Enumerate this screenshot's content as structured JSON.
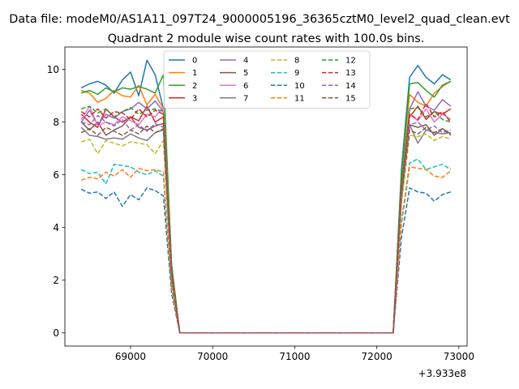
{
  "suptitle": "Data file: modeM0/AS1A11_097T24_9000005196_36365cztM0_level2_quad_clean.evt",
  "chart_data": {
    "type": "line",
    "title": "Quadrant 2 module wise count rates with 100.0s bins.",
    "xlabel": "",
    "ylabel": "",
    "x_offset_label": "+3.933e8",
    "xlim": [
      68200,
      73100
    ],
    "ylim": [
      -0.5,
      10.85
    ],
    "xticks": [
      69000,
      70000,
      71000,
      72000,
      73000
    ],
    "xtick_labels": [
      "69000",
      "70000",
      "71000",
      "72000",
      "73000"
    ],
    "yticks": [
      0,
      2,
      4,
      6,
      8,
      10
    ],
    "ytick_labels": [
      "0",
      "2",
      "4",
      "6",
      "8",
      "10"
    ],
    "grid": false,
    "legend_position": "top-center",
    "legend_columns": 4,
    "x": [
      68400,
      68500,
      68600,
      68700,
      68800,
      68900,
      69000,
      69100,
      69200,
      69300,
      69400,
      69500,
      69600,
      69700,
      69800,
      69900,
      70000,
      70100,
      70200,
      70300,
      70400,
      70500,
      70600,
      70700,
      70800,
      70900,
      71000,
      71100,
      71200,
      71300,
      71400,
      71500,
      71600,
      71700,
      71800,
      71900,
      72000,
      72100,
      72200,
      72300,
      72400,
      72500,
      72600,
      72700,
      72800,
      72900
    ],
    "series": [
      {
        "name": "0",
        "color": "#1f77b4",
        "dash": "solid",
        "values": [
          9.3,
          9.45,
          9.55,
          9.4,
          9.1,
          9.6,
          9.9,
          9.0,
          10.35,
          9.8,
          8.5,
          2.5,
          0,
          0,
          0,
          0,
          0,
          0,
          0,
          0,
          0,
          0,
          0,
          0,
          0,
          0,
          0,
          0,
          0,
          0,
          0,
          0,
          0,
          0,
          0,
          0,
          0,
          0,
          0,
          6.2,
          9.7,
          10.15,
          9.7,
          9.45,
          9.8,
          9.6
        ]
      },
      {
        "name": "1",
        "color": "#ff7f0e",
        "dash": "solid",
        "values": [
          9.2,
          9.1,
          8.75,
          8.9,
          9.2,
          9.0,
          8.95,
          9.4,
          8.65,
          9.05,
          8.5,
          2.5,
          0,
          0,
          0,
          0,
          0,
          0,
          0,
          0,
          0,
          0,
          0,
          0,
          0,
          0,
          0,
          0,
          0,
          0,
          0,
          0,
          0,
          0,
          0,
          0,
          0,
          0,
          0,
          6.0,
          9.05,
          8.75,
          8.6,
          9.1,
          9.35,
          9.55
        ]
      },
      {
        "name": "2",
        "color": "#2ca02c",
        "dash": "solid",
        "values": [
          9.1,
          9.2,
          9.05,
          9.3,
          9.15,
          9.3,
          9.25,
          9.35,
          9.25,
          9.1,
          9.8,
          2.6,
          0,
          0,
          0,
          0,
          0,
          0,
          0,
          0,
          0,
          0,
          0,
          0,
          0,
          0,
          0,
          0,
          0,
          0,
          0,
          0,
          0,
          0,
          0,
          0,
          0,
          0,
          0,
          6.0,
          9.45,
          9.5,
          9.2,
          8.95,
          9.4,
          9.55
        ]
      },
      {
        "name": "3",
        "color": "#d62728",
        "dash": "solid",
        "values": [
          8.3,
          8.0,
          7.8,
          8.5,
          8.2,
          8.0,
          8.2,
          8.05,
          8.6,
          8.0,
          8.2,
          2.3,
          0,
          0,
          0,
          0,
          0,
          0,
          0,
          0,
          0,
          0,
          0,
          0,
          0,
          0,
          0,
          0,
          0,
          0,
          0,
          0,
          0,
          0,
          0,
          0,
          0,
          0,
          0,
          5.4,
          8.2,
          8.6,
          8.1,
          8.4,
          8.3,
          8.5
        ]
      },
      {
        "name": "4",
        "color": "#9467bd",
        "dash": "solid",
        "values": [
          8.0,
          8.45,
          7.9,
          8.3,
          8.15,
          8.4,
          8.5,
          8.75,
          8.5,
          8.8,
          8.4,
          2.3,
          0,
          0,
          0,
          0,
          0,
          0,
          0,
          0,
          0,
          0,
          0,
          0,
          0,
          0,
          0,
          0,
          0,
          0,
          0,
          0,
          0,
          0,
          0,
          0,
          0,
          0,
          0,
          5.5,
          8.5,
          9.15,
          8.6,
          8.45,
          8.85,
          8.6
        ]
      },
      {
        "name": "5",
        "color": "#8c564b",
        "dash": "solid",
        "values": [
          8.0,
          7.7,
          8.0,
          7.5,
          7.7,
          7.85,
          8.2,
          7.8,
          7.7,
          7.85,
          7.95,
          2.2,
          0,
          0,
          0,
          0,
          0,
          0,
          0,
          0,
          0,
          0,
          0,
          0,
          0,
          0,
          0,
          0,
          0,
          0,
          0,
          0,
          0,
          0,
          0,
          0,
          0,
          0,
          0,
          5.3,
          7.9,
          7.8,
          7.9,
          7.5,
          7.75,
          7.55
        ]
      },
      {
        "name": "6",
        "color": "#e377c2",
        "dash": "solid",
        "values": [
          8.1,
          8.6,
          7.85,
          8.0,
          7.9,
          8.2,
          8.05,
          7.9,
          8.3,
          8.2,
          8.6,
          2.3,
          0,
          0,
          0,
          0,
          0,
          0,
          0,
          0,
          0,
          0,
          0,
          0,
          0,
          0,
          0,
          0,
          0,
          0,
          0,
          0,
          0,
          0,
          0,
          0,
          0,
          0,
          0,
          5.4,
          8.3,
          8.05,
          8.5,
          8.0,
          8.3,
          8.1
        ]
      },
      {
        "name": "7",
        "color": "#7f7f7f",
        "dash": "solid",
        "values": [
          7.8,
          7.5,
          7.45,
          7.35,
          7.4,
          7.35,
          7.55,
          7.4,
          7.3,
          7.6,
          7.7,
          2.1,
          0,
          0,
          0,
          0,
          0,
          0,
          0,
          0,
          0,
          0,
          0,
          0,
          0,
          0,
          0,
          0,
          0,
          0,
          0,
          0,
          0,
          0,
          0,
          0,
          0,
          0,
          0,
          5.0,
          7.9,
          7.2,
          7.7,
          7.6,
          7.55,
          7.6
        ]
      },
      {
        "name": "8",
        "color": "#bcbd22",
        "dash": "dashed",
        "values": [
          7.25,
          7.35,
          6.8,
          7.3,
          7.2,
          7.1,
          7.25,
          7.2,
          7.15,
          6.8,
          7.3,
          2.0,
          0,
          0,
          0,
          0,
          0,
          0,
          0,
          0,
          0,
          0,
          0,
          0,
          0,
          0,
          0,
          0,
          0,
          0,
          0,
          0,
          0,
          0,
          0,
          0,
          0,
          0,
          0,
          4.9,
          7.5,
          7.45,
          7.55,
          7.3,
          7.45,
          7.35
        ]
      },
      {
        "name": "9",
        "color": "#17becf",
        "dash": "dashed",
        "values": [
          6.2,
          6.05,
          6.1,
          5.65,
          6.4,
          6.35,
          6.3,
          6.1,
          6.0,
          6.15,
          5.95,
          1.7,
          0,
          0,
          0,
          0,
          0,
          0,
          0,
          0,
          0,
          0,
          0,
          0,
          0,
          0,
          0,
          0,
          0,
          0,
          0,
          0,
          0,
          0,
          0,
          0,
          0,
          0,
          0,
          4.2,
          6.45,
          6.6,
          6.2,
          6.3,
          6.4,
          6.2
        ]
      },
      {
        "name": "10",
        "color": "#1f77b4",
        "dash": "dashed",
        "values": [
          5.45,
          5.3,
          5.35,
          5.1,
          5.35,
          4.8,
          5.25,
          5.05,
          5.5,
          5.4,
          5.2,
          1.5,
          0,
          0,
          0,
          0,
          0,
          0,
          0,
          0,
          0,
          0,
          0,
          0,
          0,
          0,
          0,
          0,
          0,
          0,
          0,
          0,
          0,
          0,
          0,
          0,
          0,
          0,
          0,
          3.6,
          5.5,
          5.35,
          5.3,
          5.0,
          5.25,
          5.35
        ]
      },
      {
        "name": "11",
        "color": "#ff7f0e",
        "dash": "dashed",
        "values": [
          5.8,
          5.9,
          5.85,
          6.1,
          5.95,
          6.2,
          5.9,
          6.25,
          6.15,
          6.2,
          6.1,
          1.7,
          0,
          0,
          0,
          0,
          0,
          0,
          0,
          0,
          0,
          0,
          0,
          0,
          0,
          0,
          0,
          0,
          0,
          0,
          0,
          0,
          0,
          0,
          0,
          0,
          0,
          0,
          0,
          4.1,
          6.3,
          6.25,
          6.2,
          5.95,
          5.9,
          6.15
        ]
      },
      {
        "name": "12",
        "color": "#2ca02c",
        "dash": "dashed",
        "values": [
          8.5,
          8.6,
          8.35,
          8.5,
          8.2,
          8.4,
          8.55,
          8.3,
          8.45,
          8.5,
          8.4,
          2.4,
          0,
          0,
          0,
          0,
          0,
          0,
          0,
          0,
          0,
          0,
          0,
          0,
          0,
          0,
          0,
          0,
          0,
          0,
          0,
          0,
          0,
          0,
          0,
          0,
          0,
          0,
          0,
          5.6,
          8.5,
          8.55,
          8.2,
          8.4,
          8.1,
          8.0
        ]
      },
      {
        "name": "13",
        "color": "#d62728",
        "dash": "dashed",
        "values": [
          8.4,
          8.2,
          8.5,
          8.15,
          8.4,
          8.35,
          8.1,
          8.5,
          8.2,
          8.45,
          8.3,
          2.3,
          0,
          0,
          0,
          0,
          0,
          0,
          0,
          0,
          0,
          0,
          0,
          0,
          0,
          0,
          0,
          0,
          0,
          0,
          0,
          0,
          0,
          0,
          0,
          0,
          0,
          0,
          0,
          5.5,
          8.3,
          8.1,
          8.7,
          8.2,
          8.4,
          8.0
        ]
      },
      {
        "name": "14",
        "color": "#9467bd",
        "dash": "dashed",
        "values": [
          8.0,
          7.9,
          8.25,
          8.0,
          7.85,
          8.1,
          7.7,
          7.9,
          7.65,
          7.95,
          7.8,
          2.2,
          0,
          0,
          0,
          0,
          0,
          0,
          0,
          0,
          0,
          0,
          0,
          0,
          0,
          0,
          0,
          0,
          0,
          0,
          0,
          0,
          0,
          0,
          0,
          0,
          0,
          0,
          0,
          5.3,
          7.9,
          8.0,
          7.7,
          7.85,
          7.6,
          7.7
        ]
      },
      {
        "name": "15",
        "color": "#8c564b",
        "dash": "dashed",
        "values": [
          7.6,
          7.75,
          7.5,
          7.8,
          7.65,
          7.5,
          7.7,
          7.55,
          7.85,
          7.6,
          7.75,
          2.1,
          0,
          0,
          0,
          0,
          0,
          0,
          0,
          0,
          0,
          0,
          0,
          0,
          0,
          0,
          0,
          0,
          0,
          0,
          0,
          0,
          0,
          0,
          0,
          0,
          0,
          0,
          0,
          5.2,
          7.7,
          7.55,
          7.8,
          7.6,
          7.75,
          7.5
        ]
      }
    ]
  }
}
